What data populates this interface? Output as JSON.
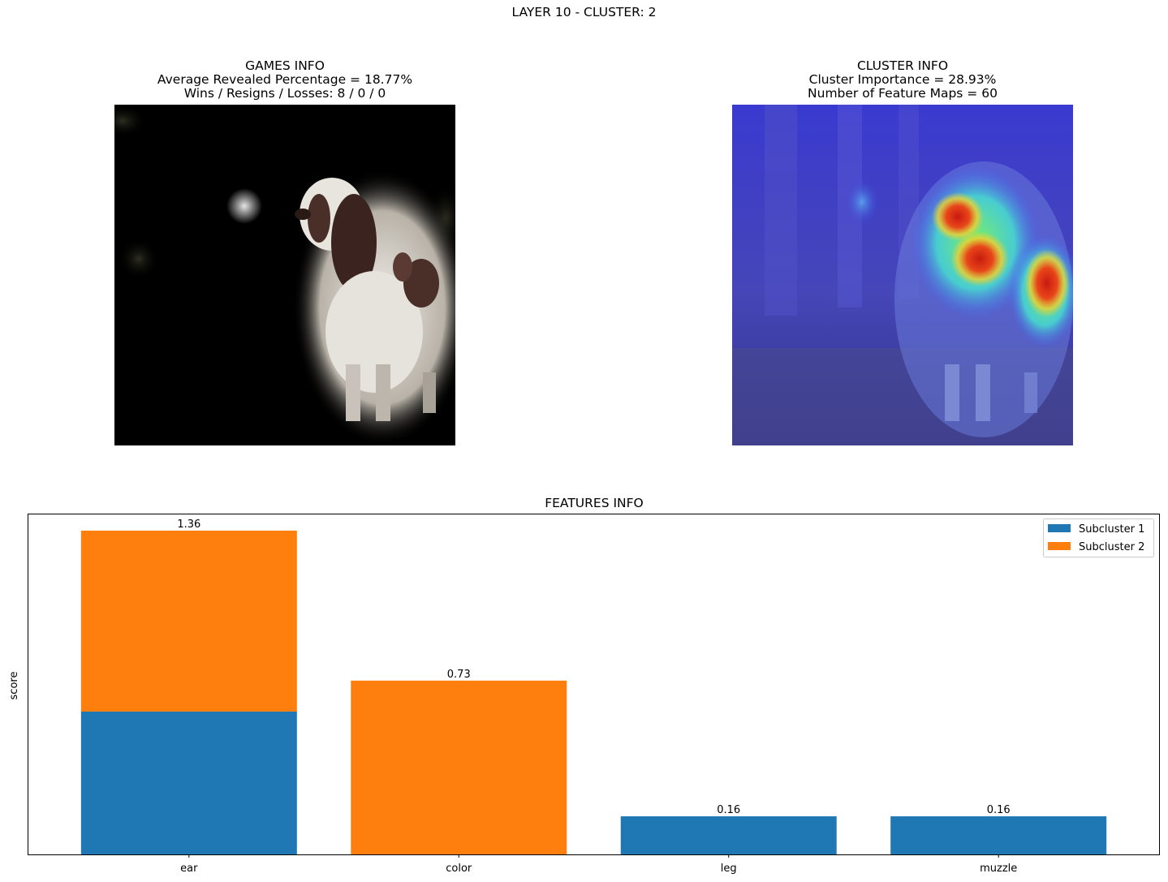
{
  "figure": {
    "title": "LAYER 10 - CLUSTER: 2"
  },
  "games_info": {
    "title": "GAMES INFO",
    "line1": "Average Revealed Percentage = 18.77%",
    "line2": "Wins / Resigns / Losses: 8 / 0 / 0",
    "image_description": "masked dog photo (revealed regions)"
  },
  "cluster_info": {
    "title": "CLUSTER INFO",
    "line1": "Cluster Importance = 28.93%",
    "line2": "Number of Feature Maps = 60",
    "image_description": "heatmap overlay on dog photo"
  },
  "colors": {
    "subcluster_1": "#1f77b4",
    "subcluster_2": "#ff7f0e"
  },
  "chart_data": {
    "type": "bar",
    "stacked": true,
    "title": "FEATURES INFO",
    "xlabel": "",
    "ylabel": "score",
    "categories": [
      "ear",
      "color",
      "leg",
      "muzzle"
    ],
    "series": [
      {
        "name": "Subcluster 1",
        "values": [
          0.6,
          0.0,
          0.16,
          0.16
        ]
      },
      {
        "name": "Subcluster 2",
        "values": [
          0.76,
          0.73,
          0.0,
          0.0
        ]
      }
    ],
    "totals": [
      "1.36",
      "0.73",
      "0.16",
      "0.16"
    ],
    "ylim": [
      0,
      1.428
    ],
    "legend_position": "top-right",
    "grid": false
  }
}
